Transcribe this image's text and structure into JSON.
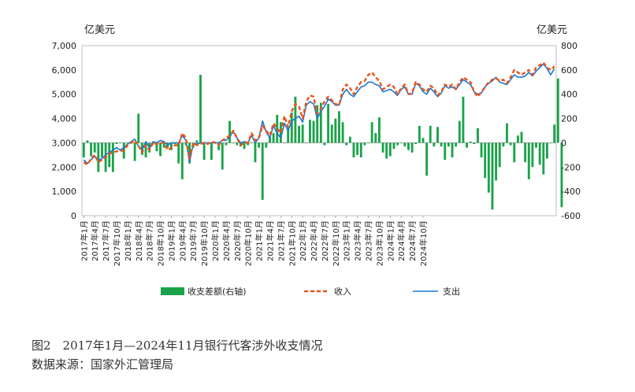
{
  "figure": {
    "caption": "图2　2017年1月—2024年11月银行代客涉外收支情况",
    "source": "数据来源：国家外汇管理局"
  },
  "chart_data": {
    "type": "bar+line",
    "left_unit": "亿美元",
    "right_unit": "亿美元",
    "ylim_left": [
      0,
      7000
    ],
    "yticks_left": [
      "0",
      "1,000",
      "2,000",
      "3,000",
      "4,000",
      "5,000",
      "6,000",
      "7,000"
    ],
    "ylim_right": [
      -600,
      800
    ],
    "yticks_right": [
      "-600",
      "-400",
      "-200",
      "0",
      "200",
      "400",
      "600",
      "800"
    ],
    "xtick_labels": [
      "2017年1月",
      "2017年4月",
      "2017年7月",
      "2017年10月",
      "2018年1月",
      "2018年4月",
      "2018年7月",
      "2018年10月",
      "2019年1月",
      "2019年4月",
      "2019年7月",
      "2019年10月",
      "2020年1月",
      "2020年4月",
      "2020年7月",
      "2020年10月",
      "2021年1月",
      "2021年4月",
      "2021年7月",
      "2021年10月",
      "2022年1月",
      "2022年4月",
      "2022年7月",
      "2022年10月",
      "2023年1月",
      "2023年4月",
      "2023年7月",
      "2023年10月",
      "2024年1月",
      "2024年4月",
      "2024年7月",
      "2024年10月"
    ],
    "legend": [
      "收支差额(右轴)",
      "收入",
      "支出"
    ],
    "colors": {
      "balance": "#1aa34a",
      "income": "#e8541c",
      "expense": "#1f77c9"
    },
    "series": [
      {
        "name": "收支差额(右轴)",
        "axis": "right",
        "values": [
          -120,
          20,
          -110,
          -80,
          -240,
          -120,
          -240,
          -200,
          -240,
          -10,
          0,
          -130,
          0,
          10,
          -150,
          240,
          -100,
          -120,
          -80,
          -10,
          -70,
          -110,
          -40,
          -40,
          -60,
          -10,
          -170,
          -300,
          -20,
          -170,
          -40,
          20,
          560,
          -140,
          -10,
          -140,
          10,
          -60,
          -220,
          -20,
          180,
          0,
          -20,
          -30,
          -50,
          -20,
          0,
          -160,
          -40,
          -470,
          -40,
          50,
          80,
          230,
          170,
          0,
          120,
          250,
          380,
          140,
          150,
          0,
          190,
          180,
          310,
          330,
          -20,
          320,
          150,
          200,
          260,
          170,
          -20,
          50,
          -120,
          -100,
          -120,
          -20,
          0,
          170,
          80,
          210,
          -80,
          -130,
          -110,
          -50,
          -20,
          0,
          -30,
          -60,
          -80,
          -10,
          140,
          40,
          -270,
          140,
          -30,
          130,
          -30,
          -140,
          -30,
          -120,
          -30,
          180,
          380,
          -40,
          10,
          -10,
          120,
          -120,
          -290,
          -410,
          -550,
          -310,
          -200,
          -30,
          160,
          -20,
          -160,
          60,
          90,
          -160,
          -300,
          -200,
          -40,
          -180,
          -260,
          -130,
          0,
          150,
          530,
          -530
        ]
      },
      {
        "name": "收入",
        "axis": "left",
        "values": [
          2200,
          2100,
          2350,
          2500,
          2200,
          2300,
          2400,
          2550,
          2600,
          2650,
          2650,
          2700,
          2900,
          3000,
          3100,
          2900,
          2600,
          2900,
          2700,
          3000,
          2950,
          3000,
          3000,
          2700,
          2800,
          2900,
          2900,
          3400,
          3200,
          2350,
          3000,
          2900,
          2950,
          3000,
          2950,
          3050,
          3000,
          2900,
          3100,
          3200,
          3300,
          3500,
          3200,
          2900,
          3000,
          3000,
          3400,
          3100,
          3200,
          3700,
          3500,
          3300,
          3800,
          3600,
          3400,
          4100,
          3650,
          4300,
          4600,
          4500,
          4000,
          4700,
          4950,
          4900,
          4200,
          4400,
          4700,
          4900,
          4750,
          4600,
          4550,
          5200,
          5400,
          5250,
          5000,
          5300,
          5500,
          5550,
          5800,
          5900,
          5700,
          5550,
          5200,
          5300,
          5400,
          5300,
          5000,
          5250,
          5400,
          5000,
          5050,
          5500,
          5400,
          5200,
          5100,
          5350,
          5250,
          4950,
          5100,
          5400,
          5300,
          5400,
          5200,
          5500,
          5700,
          5600,
          5500,
          5100,
          4900,
          5100,
          5300,
          5500,
          5600,
          5650,
          5550,
          5600,
          5450,
          5700,
          6000,
          5900,
          5800,
          5900,
          6000,
          5800,
          6100,
          6200,
          6300,
          6100,
          6000,
          6150
        ]
      },
      {
        "name": "支出",
        "axis": "left",
        "values": [
          2300,
          2150,
          2300,
          2450,
          2300,
          2350,
          2500,
          2600,
          2700,
          2800,
          2700,
          2800,
          2950,
          3050,
          3150,
          2850,
          2700,
          3050,
          2800,
          3050,
          3000,
          3100,
          3050,
          2900,
          3000,
          3000,
          3000,
          3300,
          3100,
          2200,
          2950,
          2950,
          3000,
          3000,
          3000,
          3000,
          3000,
          3000,
          3100,
          3100,
          3250,
          3450,
          3200,
          3000,
          3050,
          3000,
          3300,
          3000,
          3200,
          3900,
          3450,
          3200,
          3700,
          3400,
          3200,
          3800,
          3500,
          3900,
          4000,
          4100,
          3850,
          4550,
          4700,
          4600,
          4000,
          4300,
          4500,
          4800,
          4700,
          4550,
          4550,
          5000,
          5200,
          5000,
          4900,
          5100,
          5300,
          5350,
          5500,
          5500,
          5400,
          5350,
          5100,
          5150,
          5200,
          5100,
          4950,
          5200,
          5300,
          5000,
          5000,
          5450,
          5350,
          5100,
          5000,
          5250,
          5100,
          4900,
          5050,
          5350,
          5250,
          5300,
          5200,
          5400,
          5600,
          5500,
          5400,
          5100,
          5000,
          5050,
          5300,
          5450,
          5550,
          5700,
          5500,
          5450,
          5400,
          5600,
          5800,
          5700,
          5700,
          5750,
          5900,
          5750,
          5950,
          6100,
          6250,
          6050,
          5800,
          6050
        ]
      }
    ]
  }
}
